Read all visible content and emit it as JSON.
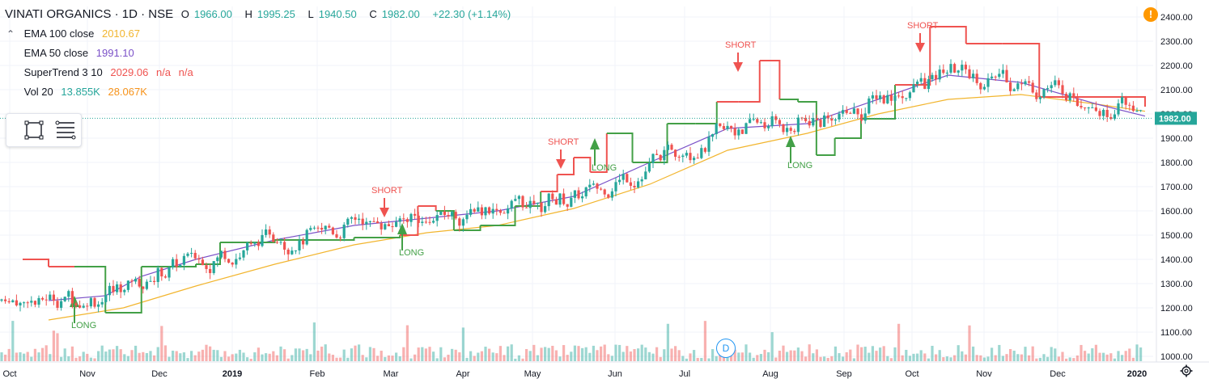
{
  "header": {
    "symbol": "VINATI ORGANICS · 1D · NSE",
    "open_label": "O",
    "open": "1966.00",
    "high_label": "H",
    "high": "1995.25",
    "low_label": "L",
    "low": "1940.50",
    "close_label": "C",
    "close": "1982.00",
    "change": "+22.30 (+1.14%)"
  },
  "legend": {
    "ema100": {
      "label": "EMA 100 close",
      "value": "2010.67",
      "color": "#f2b52e"
    },
    "ema50": {
      "label": "EMA 50 close",
      "value": "1991.10",
      "color": "#7b51c8"
    },
    "supertrend": {
      "label": "SuperTrend 3 10",
      "value": "2029.06",
      "na1": "n/a",
      "na2": "n/a",
      "color": "#ef5350"
    },
    "vol": {
      "label": "Vol 20",
      "value": "13.855K",
      "ma": "28.067K",
      "value_color": "#26a69a",
      "ma_color": "#f7931a"
    }
  },
  "toggle_icon": "chevron-up-icon",
  "toolbox_icons": [
    "rectangle-icon",
    "lines-icon"
  ],
  "warning_icon": "exclamation-icon",
  "warning_label": "!",
  "settings_icon": "gear-icon",
  "dividend_label": "D",
  "colors": {
    "up": "#26a69a",
    "down": "#ef5350",
    "st_up": "#43a047",
    "st_down": "#ef5350",
    "grid": "#f0f3fa",
    "axis_text": "#131722"
  },
  "chart_data": {
    "type": "candlestick",
    "price_axis": {
      "ticks": [
        "2400.00",
        "2300.00",
        "2200.00",
        "2100.00",
        "2000.00",
        "1900.00",
        "1800.00",
        "1700.00",
        "1600.00",
        "1500.00",
        "1400.00",
        "1300.00",
        "1200.00",
        "1100.00",
        "1000.00"
      ],
      "ylim": [
        990,
        2440
      ],
      "last_price": "1982.00"
    },
    "time_axis": {
      "labels": [
        "Oct",
        "Nov",
        "Dec",
        "2019",
        "Feb",
        "Mar",
        "Apr",
        "May",
        "Jun",
        "Jul",
        "Aug",
        "Sep",
        "Oct",
        "Nov",
        "Dec",
        "2020"
      ]
    },
    "supertrend": [
      {
        "date": "Oct",
        "value": 1400
      },
      {
        "date": "Oct",
        "value": 1370
      },
      {
        "date": "Oct",
        "value": 1370
      },
      {
        "date": "Nov",
        "value": 1180
      },
      {
        "date": "Nov",
        "value": 1370
      },
      {
        "date": "Dec",
        "value": 1370
      },
      {
        "date": "Dec",
        "value": 1380
      },
      {
        "date": "Dec",
        "value": 1470
      },
      {
        "date": "2019",
        "value": 1480
      },
      {
        "date": "Feb",
        "value": 1490
      },
      {
        "date": "Mar",
        "value": 1500
      },
      {
        "date": "Mar",
        "value": 1620
      },
      {
        "date": "Mar",
        "value": 1600
      },
      {
        "date": "Mar",
        "value": 1520
      },
      {
        "date": "Apr",
        "value": 1540
      },
      {
        "date": "Apr",
        "value": 1620
      },
      {
        "date": "May",
        "value": 1680
      },
      {
        "date": "May",
        "value": 1750
      },
      {
        "date": "May",
        "value": 1820
      },
      {
        "date": "May",
        "value": 1760
      },
      {
        "date": "May",
        "value": 1920
      },
      {
        "date": "Jun",
        "value": 1800
      },
      {
        "date": "Jun",
        "value": 1960
      },
      {
        "date": "Jul",
        "value": 1960
      },
      {
        "date": "Jul",
        "value": 2050
      },
      {
        "date": "Jul",
        "value": 2050
      },
      {
        "date": "Jul",
        "value": 2220
      },
      {
        "date": "Aug",
        "value": 2060
      },
      {
        "date": "Aug",
        "value": 2050
      },
      {
        "date": "Aug",
        "value": 1830
      },
      {
        "date": "Aug",
        "value": 1900
      },
      {
        "date": "Sep",
        "value": 1980
      },
      {
        "date": "Sep",
        "value": 2120
      },
      {
        "date": "Oct",
        "value": 2360
      },
      {
        "date": "Oct",
        "value": 2290
      },
      {
        "date": "Nov",
        "value": 2290
      },
      {
        "date": "Nov",
        "value": 2070
      },
      {
        "date": "Dec",
        "value": 2070
      },
      {
        "date": "2020",
        "value": 2030
      }
    ],
    "ema50": [
      {
        "date": "Oct",
        "value": 1230
      },
      {
        "date": "Nov",
        "value": 1250
      },
      {
        "date": "Nov",
        "value": 1330
      },
      {
        "date": "Dec",
        "value": 1400
      },
      {
        "date": "2019",
        "value": 1480
      },
      {
        "date": "Feb",
        "value": 1540
      },
      {
        "date": "Mar",
        "value": 1570
      },
      {
        "date": "Apr",
        "value": 1600
      },
      {
        "date": "May",
        "value": 1660
      },
      {
        "date": "Jun",
        "value": 1800
      },
      {
        "date": "Jul",
        "value": 1940
      },
      {
        "date": "Aug",
        "value": 1960
      },
      {
        "date": "Sep",
        "value": 2060
      },
      {
        "date": "Oct",
        "value": 2160
      },
      {
        "date": "Nov",
        "value": 2130
      },
      {
        "date": "Dec",
        "value": 2040
      },
      {
        "date": "2020",
        "value": 1991
      }
    ],
    "ema100": [
      {
        "date": "Oct",
        "value": 1150
      },
      {
        "date": "Nov",
        "value": 1200
      },
      {
        "date": "Dec",
        "value": 1290
      },
      {
        "date": "2019",
        "value": 1380
      },
      {
        "date": "Feb",
        "value": 1460
      },
      {
        "date": "Mar",
        "value": 1510
      },
      {
        "date": "Apr",
        "value": 1540
      },
      {
        "date": "May",
        "value": 1610
      },
      {
        "date": "Jun",
        "value": 1710
      },
      {
        "date": "Jul",
        "value": 1850
      },
      {
        "date": "Aug",
        "value": 1920
      },
      {
        "date": "Sep",
        "value": 2000
      },
      {
        "date": "Oct",
        "value": 2060
      },
      {
        "date": "Nov",
        "value": 2080
      },
      {
        "date": "Dec",
        "value": 2040
      },
      {
        "date": "2020",
        "value": 2011
      }
    ],
    "signals": [
      {
        "type": "LONG",
        "date": "Nov",
        "price": 1230
      },
      {
        "type": "SHORT",
        "date": "Mar",
        "price": 1620
      },
      {
        "type": "LONG",
        "date": "Mar",
        "price": 1530
      },
      {
        "type": "SHORT",
        "date": "May",
        "price": 1820
      },
      {
        "type": "LONG",
        "date": "Jun",
        "price": 1880
      },
      {
        "type": "SHORT",
        "date": "Jul",
        "price": 2220
      },
      {
        "type": "LONG",
        "date": "Aug",
        "price": 1890
      },
      {
        "type": "SHORT",
        "date": "Oct",
        "price": 2300
      }
    ],
    "legend_items": [
      "EMA 100 close",
      "EMA 50 close",
      "SuperTrend 3 10",
      "Vol 20"
    ]
  }
}
